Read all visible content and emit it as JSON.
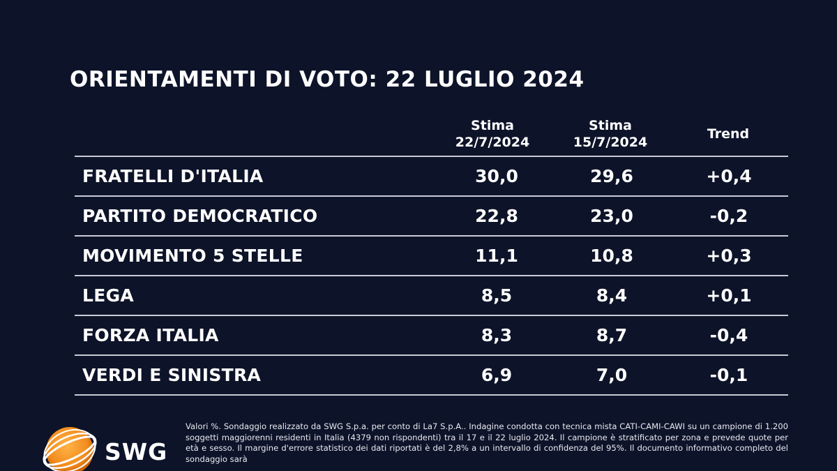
{
  "title": "ORIENTAMENTI DI VOTO: 22 LUGLIO 2024",
  "columns": {
    "est1_line1": "Stima",
    "est1_line2": "22/7/2024",
    "est2_line1": "Stima",
    "est2_line2": "15/7/2024",
    "trend": "Trend"
  },
  "chart_data": {
    "type": "table",
    "title": "ORIENTAMENTI DI VOTO: 22 LUGLIO 2024",
    "columns": [
      "Stima 22/7/2024",
      "Stima 15/7/2024",
      "Trend"
    ],
    "rows": [
      {
        "party": "FRATELLI D'ITALIA",
        "stima_22": "30,0",
        "stima_15": "29,6",
        "trend": "+0,4"
      },
      {
        "party": "PARTITO DEMOCRATICO",
        "stima_22": "22,8",
        "stima_15": "23,0",
        "trend": "-0,2"
      },
      {
        "party": "MOVIMENTO 5 STELLE",
        "stima_22": "11,1",
        "stima_15": "10,8",
        "trend": "+0,3"
      },
      {
        "party": "LEGA",
        "stima_22": "8,5",
        "stima_15": "8,4",
        "trend": "+0,1"
      },
      {
        "party": "FORZA ITALIA",
        "stima_22": "8,3",
        "stima_15": "8,7",
        "trend": "-0,4"
      },
      {
        "party": "VERDI E SINISTRA",
        "stima_22": "6,9",
        "stima_15": "7,0",
        "trend": "-0,1"
      }
    ]
  },
  "logo": {
    "text": "SWG",
    "accent_color": "#f28c1e"
  },
  "footnote": "Valori %. Sondaggio realizzato da SWG S.p.a. per conto di La7 S.p.A.. Indagine condotta con tecnica mista CATI-CAMI-CAWI su un campione di 1.200 soggetti maggiorenni residenti in Italia (4379 non rispondenti) tra il 17 e il 22 luglio 2024. Il campione è stratificato per zona e prevede quote per età e sesso. Il margine d'errore statistico dei dati riportati è del 2,8% a un intervallo di confidenza del 95%. Il documento informativo completo del sondaggio sarà"
}
